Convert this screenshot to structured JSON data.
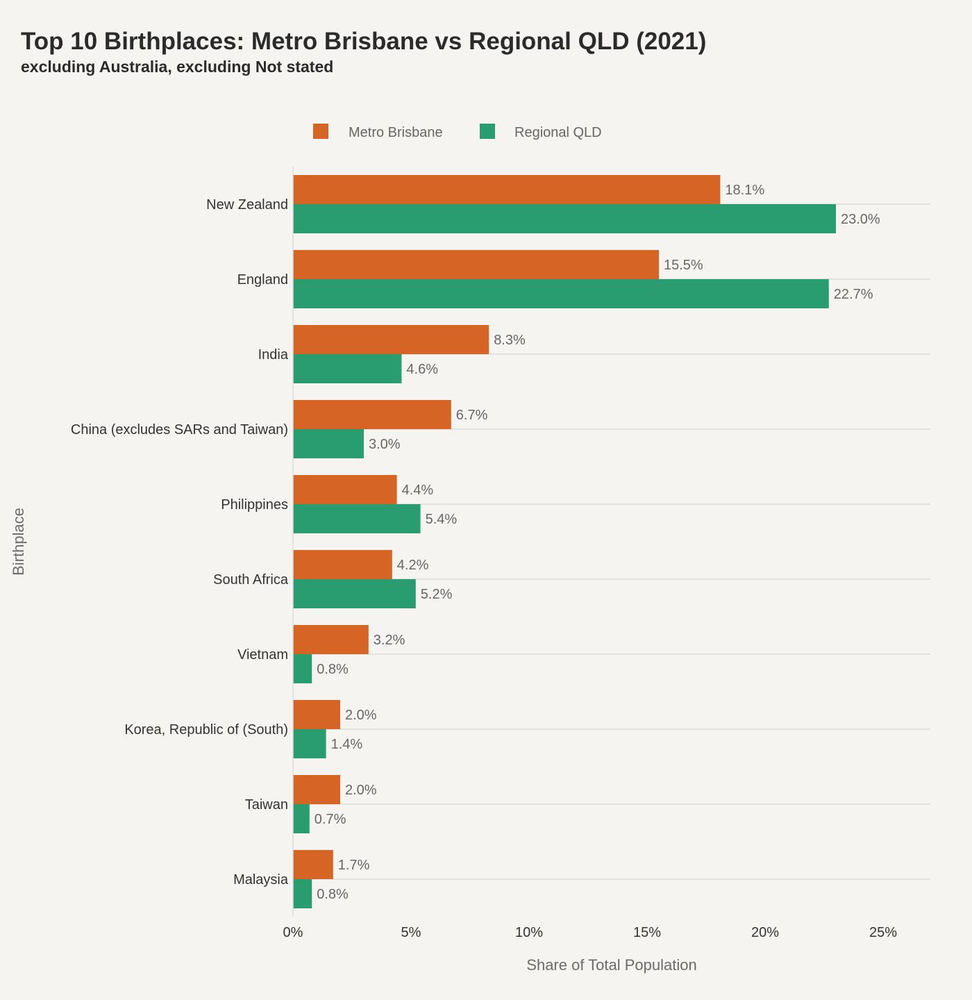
{
  "chart_data": {
    "type": "bar",
    "orientation": "horizontal",
    "title": "Top 10 Birthplaces: Metro Brisbane vs Regional QLD (2021)",
    "subtitle": "excluding Australia, excluding Not stated",
    "xlabel": "Share of Total Population",
    "ylabel": "Birthplace",
    "xlim": [
      0,
      27
    ],
    "x_ticks": [
      0,
      5,
      10,
      15,
      20,
      25
    ],
    "x_tick_format": "{v}%",
    "value_format": "{v}%",
    "grid": "horizontal lines at categories",
    "legend_position": "top-center",
    "categories": [
      "New Zealand",
      "England",
      "India",
      "China (excludes SARs and Taiwan)",
      "Philippines",
      "South Africa",
      "Vietnam",
      "Korea, Republic of (South)",
      "Taiwan",
      "Malaysia"
    ],
    "series": [
      {
        "name": "Metro Brisbane",
        "color": "#d56425",
        "values": [
          18.1,
          15.5,
          8.3,
          6.7,
          4.4,
          4.2,
          3.2,
          2.0,
          2.0,
          1.7
        ]
      },
      {
        "name": "Regional QLD",
        "color": "#2a9d70",
        "values": [
          23.0,
          22.7,
          4.6,
          3.0,
          5.4,
          5.2,
          0.8,
          1.4,
          0.7,
          0.8
        ]
      }
    ]
  }
}
